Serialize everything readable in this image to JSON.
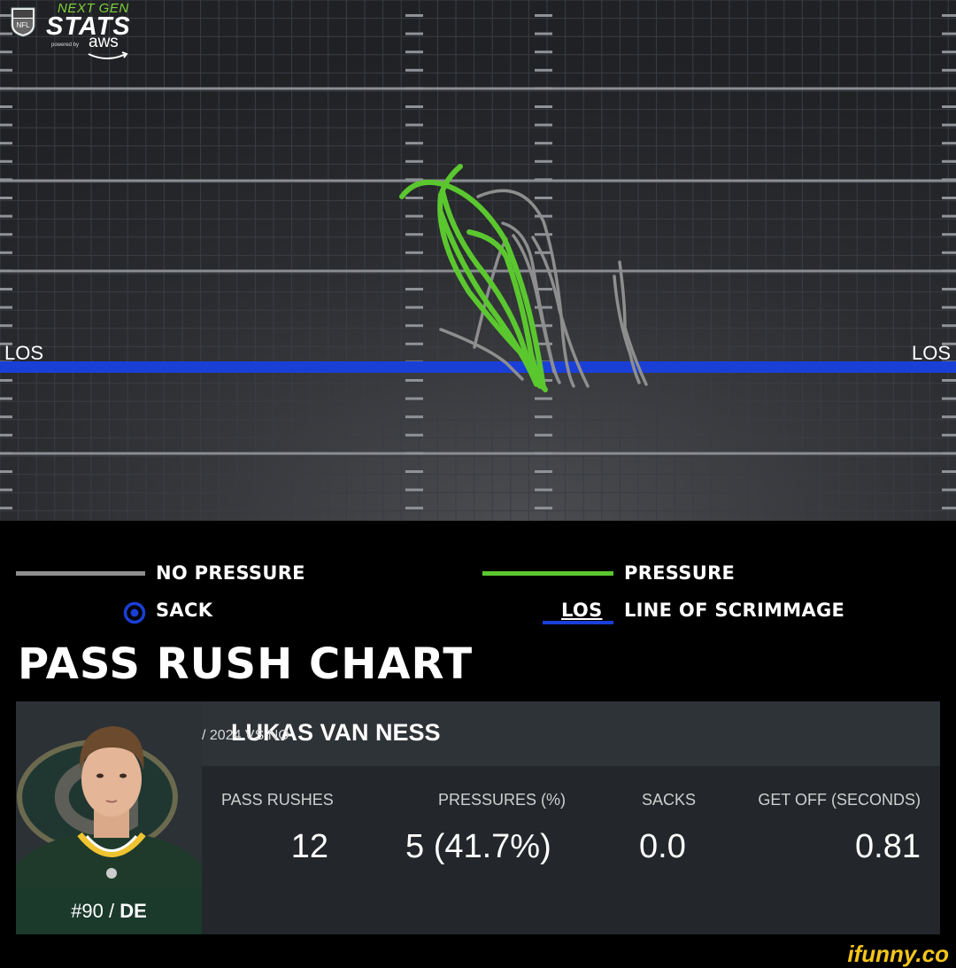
{
  "brand": {
    "next_gen": "NEXT GEN",
    "stats": "STATS",
    "powered_by": "powered by",
    "aws": "aws",
    "league": "NFL"
  },
  "chart_data": {
    "type": "route-chart",
    "title": "PASS RUSH CHART",
    "los_label": "LOS",
    "colors": {
      "no_pressure": "#8e8e8e",
      "pressure": "#5bc72f",
      "los": "#1a3fd6",
      "sack": "#1a3fd6"
    },
    "legend": [
      {
        "key": "no_pressure",
        "label": "NO PRESSURE"
      },
      {
        "key": "sack",
        "label": "SACK"
      },
      {
        "key": "pressure",
        "label": "PRESSURE"
      },
      {
        "key": "los",
        "abbr": "LOS",
        "label": "LINE OF SCRIMMAGE"
      }
    ],
    "counts": {
      "pass_rushes": 12,
      "pressures": 5,
      "sacks": 0
    }
  },
  "player": {
    "name": "LUKAS VAN NESS",
    "sub": "/ 2024 VS NO",
    "number": "#90 /",
    "position": "DE",
    "team_colors": {
      "primary": "#203731",
      "secondary": "#ffb612"
    }
  },
  "stats": {
    "pass_rushes": {
      "label": "PASS RUSHES",
      "value": "12"
    },
    "pressures": {
      "label": "PRESSURES (%)",
      "value": "5 (41.7%)"
    },
    "sacks": {
      "label": "SACKS",
      "value": "0.0"
    },
    "get_off": {
      "label": "GET OFF (SECONDS)",
      "value": "0.81"
    }
  },
  "watermark": "ifunny.co"
}
